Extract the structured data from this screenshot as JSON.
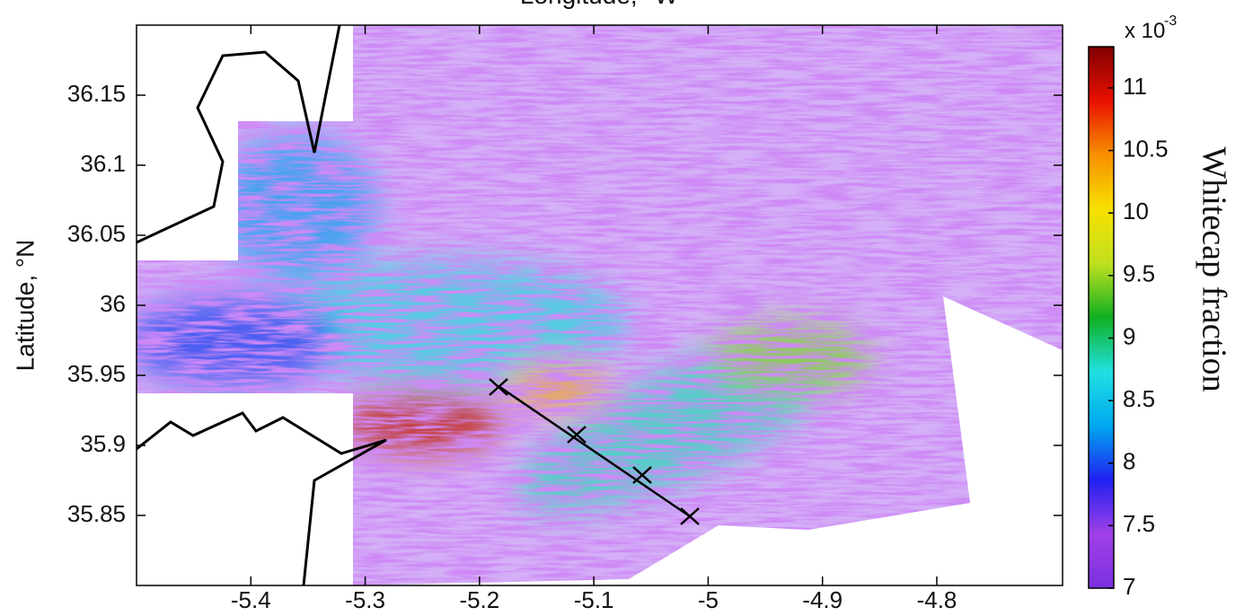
{
  "chart_data": {
    "type": "heatmap",
    "title": "Longitude, °W",
    "y_label": "Latitude, °N",
    "colorbar_label": "Whitecap fraction",
    "colorbar_multiplier": "x 10",
    "colorbar_exponent": "-3",
    "xlim": [
      -5.5,
      -4.69
    ],
    "xticks": [
      -5.4,
      -5.3,
      -5.2,
      -5.1,
      -5,
      -4.9,
      -4.8
    ],
    "ylim": [
      35.8,
      36.2
    ],
    "yticks": [
      35.85,
      35.9,
      35.95,
      36,
      36.05,
      36.1,
      36.15
    ],
    "clim": [
      7,
      11.33
    ],
    "cticks": [
      7,
      7.5,
      8,
      8.5,
      9,
      9.5,
      10,
      10.5,
      11
    ],
    "colormap": [
      "#7a30e0",
      "#a040e8",
      "#2020f0",
      "#00a8f0",
      "#20e0e0",
      "#10b020",
      "#c0e020",
      "#f8e000",
      "#f89000",
      "#e81000",
      "#800000"
    ]
  }
}
